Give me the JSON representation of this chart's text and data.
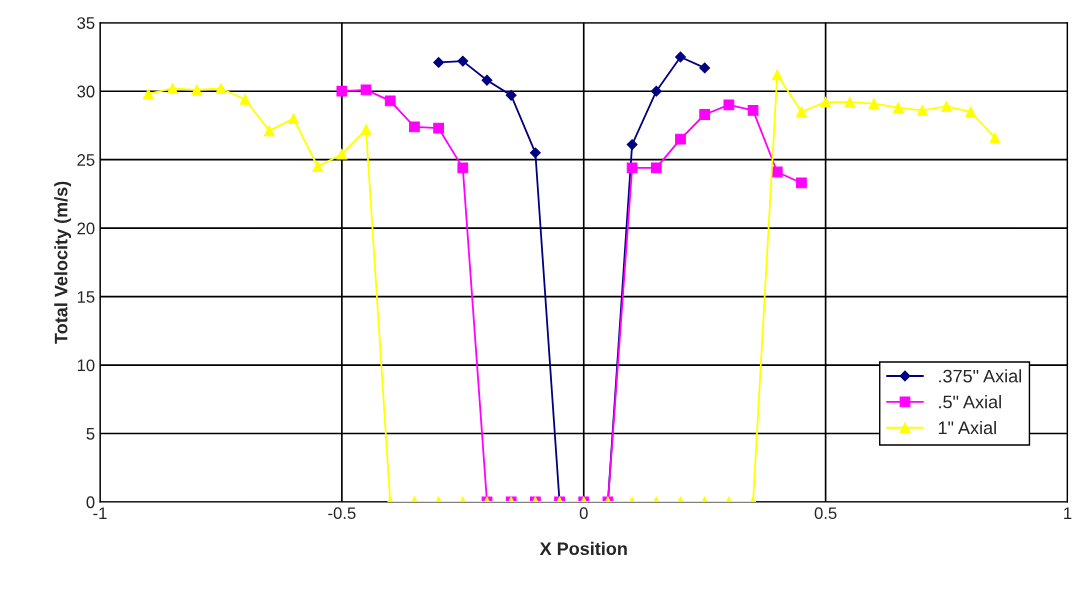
{
  "chart_data": {
    "type": "line",
    "xlabel": "X Position",
    "ylabel": "Total Velocity (m/s)",
    "xlim": [
      -1,
      1
    ],
    "xticks": [
      -1,
      -0.5,
      0,
      0.5,
      1
    ],
    "ylim": [
      0,
      35
    ],
    "yticks": [
      0,
      5,
      10,
      15,
      20,
      25,
      30,
      35
    ],
    "grid": true,
    "legend": "bottom right",
    "series": [
      {
        "name": ".375\" Axial",
        "color": "#000080",
        "marker": "diamond",
        "x": [
          -0.3,
          -0.25,
          -0.2,
          -0.15,
          -0.1,
          -0.05,
          0,
          0.05,
          0.1,
          0.15,
          0.2,
          0.25
        ],
        "values": [
          32.1,
          32.2,
          30.8,
          29.7,
          25.5,
          0,
          0,
          0,
          26.1,
          30.0,
          32.5,
          31.7
        ]
      },
      {
        "name": ".5\" Axial",
        "color": "#ff00ff",
        "marker": "square",
        "x": [
          -0.5,
          -0.45,
          -0.4,
          -0.35,
          -0.3,
          -0.25,
          -0.2,
          -0.15,
          -0.1,
          -0.05,
          0,
          0.05,
          0.1,
          0.15,
          0.2,
          0.25,
          0.3,
          0.35,
          0.4,
          0.45
        ],
        "values": [
          30.0,
          30.1,
          29.3,
          27.4,
          27.3,
          24.4,
          0,
          0,
          0,
          0,
          0,
          0,
          24.4,
          24.4,
          26.5,
          28.3,
          29.0,
          28.6,
          24.1,
          23.3
        ]
      },
      {
        "name": "1\" Axial",
        "color": "#ffff00",
        "marker": "triangle",
        "x": [
          -0.9,
          -0.85,
          -0.8,
          -0.75,
          -0.7,
          -0.65,
          -0.6,
          -0.55,
          -0.5,
          -0.45,
          -0.4,
          -0.35,
          -0.3,
          -0.25,
          -0.2,
          -0.15,
          -0.1,
          -0.05,
          0,
          0.05,
          0.1,
          0.15,
          0.2,
          0.25,
          0.3,
          0.35,
          0.4,
          0.45,
          0.5,
          0.55,
          0.6,
          0.65,
          0.7,
          0.75,
          0.8,
          0.85
        ],
        "values": [
          29.8,
          30.2,
          30.1,
          30.2,
          29.4,
          27.1,
          28.0,
          24.5,
          25.4,
          27.2,
          0,
          0,
          0,
          0,
          0,
          0,
          0,
          0,
          0,
          0,
          0,
          0,
          0,
          0,
          0,
          0,
          31.2,
          28.5,
          29.2,
          29.2,
          29.1,
          28.8,
          28.6,
          28.9,
          28.5,
          26.6
        ]
      }
    ]
  }
}
